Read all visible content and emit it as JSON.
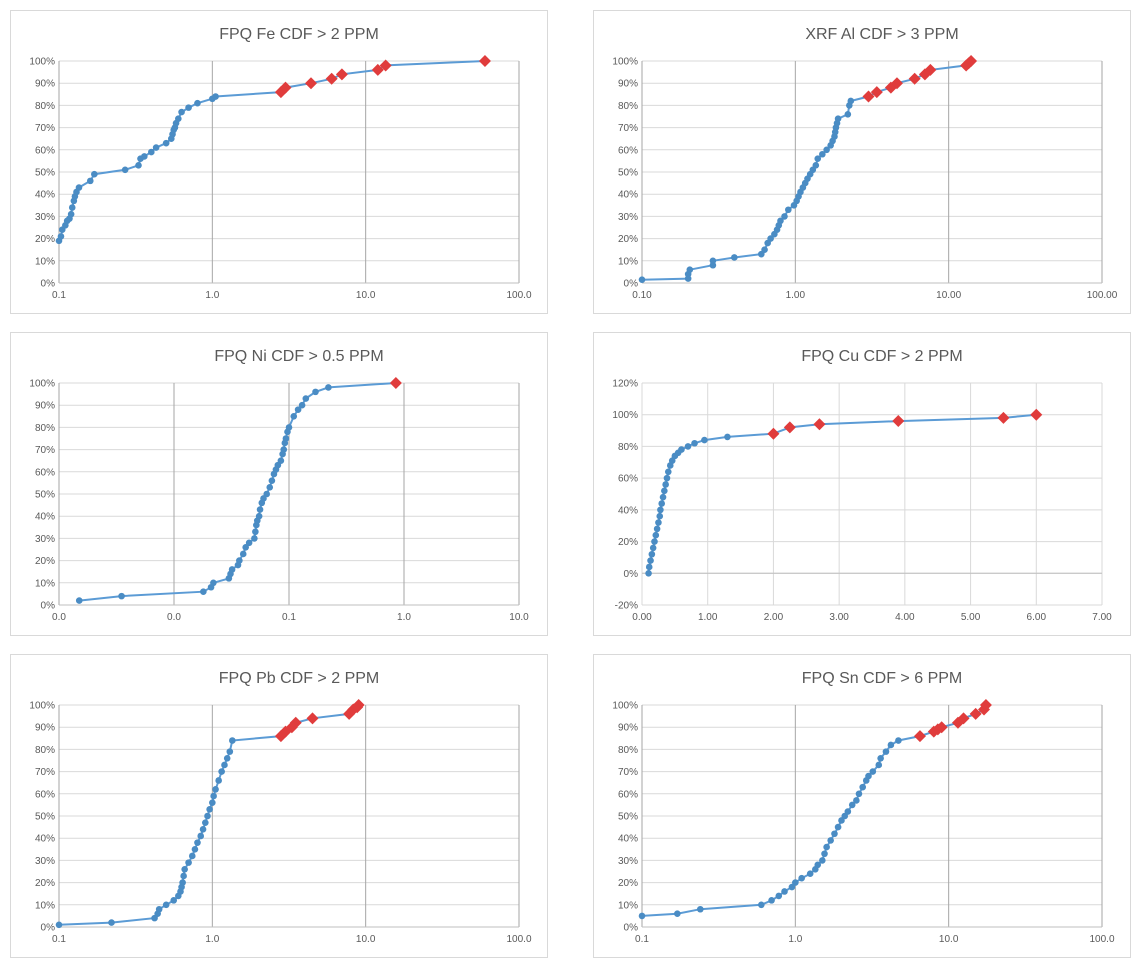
{
  "colors": {
    "line": "#5b9bd5",
    "marker": "#4a8cc4",
    "highlight": "#e03c3c",
    "grid": "#d9d9d9",
    "text": "#595959"
  },
  "chart_data": [
    {
      "type": "scatter",
      "scale": "log",
      "title": "FPQ Fe CDF > 2 PPM",
      "xlim": [
        0.1,
        100
      ],
      "ylim": [
        0,
        100
      ],
      "xticks": [
        0.1,
        1,
        10,
        100
      ],
      "xtick_labels": [
        "0.1",
        "1.0",
        "10.0",
        "100.0"
      ],
      "yticks": [
        0,
        10,
        20,
        30,
        40,
        50,
        60,
        70,
        80,
        90,
        100
      ],
      "ytick_labels": [
        "0%",
        "10%",
        "20%",
        "30%",
        "40%",
        "50%",
        "60%",
        "70%",
        "80%",
        "90%",
        "100%"
      ],
      "series": [
        {
          "x": [
            0.1,
            0.103,
            0.105,
            0.11,
            0.113,
            0.117,
            0.12,
            0.122,
            0.125,
            0.127,
            0.13,
            0.135,
            0.16,
            0.17,
            0.27,
            0.33,
            0.34,
            0.36,
            0.4,
            0.43,
            0.5,
            0.54,
            0.55,
            0.56,
            0.57,
            0.58,
            0.6,
            0.63,
            0.7,
            0.8,
            1.0,
            1.05,
            2.8,
            3.0,
            4.4,
            6.0,
            7.0,
            12.0,
            13.5,
            60.0
          ],
          "y": [
            19,
            21,
            24,
            26,
            28,
            29,
            31,
            34,
            37,
            39,
            41,
            43,
            46,
            49,
            51,
            53,
            56,
            57,
            59,
            61,
            63,
            65,
            67,
            69,
            70,
            72,
            74,
            77,
            79,
            81,
            83,
            84,
            86,
            88,
            90,
            92,
            94,
            96,
            98,
            100
          ]
        },
        {
          "highlight": true,
          "x": [
            2.8,
            3.0,
            4.4,
            6.0,
            7.0,
            12.0,
            13.5,
            60.0
          ],
          "y": [
            86,
            88,
            90,
            92,
            94,
            96,
            98,
            100
          ]
        }
      ]
    },
    {
      "type": "scatter",
      "scale": "log",
      "title": "XRF Al CDF > 3 PPM",
      "xlim": [
        0.1,
        100
      ],
      "ylim": [
        0,
        100
      ],
      "xticks": [
        0.1,
        1,
        10,
        100
      ],
      "xtick_labels": [
        "0.10",
        "1.00",
        "10.00",
        "100.00"
      ],
      "yticks": [
        0,
        10,
        20,
        30,
        40,
        50,
        60,
        70,
        80,
        90,
        100
      ],
      "ytick_labels": [
        "0%",
        "10%",
        "20%",
        "30%",
        "40%",
        "50%",
        "60%",
        "70%",
        "80%",
        "90%",
        "100%"
      ],
      "series": [
        {
          "x": [
            0.1,
            0.2,
            0.2,
            0.205,
            0.29,
            0.29,
            0.4,
            0.6,
            0.63,
            0.66,
            0.69,
            0.73,
            0.76,
            0.78,
            0.8,
            0.85,
            0.9,
            0.98,
            1.02,
            1.05,
            1.08,
            1.12,
            1.16,
            1.2,
            1.25,
            1.3,
            1.36,
            1.4,
            1.5,
            1.6,
            1.7,
            1.75,
            1.8,
            1.82,
            1.84,
            1.87,
            1.9,
            2.2,
            2.25,
            2.3,
            3.0,
            3.4,
            4.2,
            4.6,
            6.0,
            7.0,
            7.6,
            13.0,
            13.5,
            14.0
          ],
          "y": [
            1.5,
            2,
            4,
            6,
            8,
            10,
            11.5,
            13,
            15,
            18,
            20,
            22,
            24,
            26,
            28,
            30,
            33,
            35,
            37,
            39,
            41,
            43,
            45,
            47,
            49,
            51,
            53,
            56,
            58,
            60,
            62,
            64,
            66,
            68,
            70,
            72,
            74,
            76,
            80,
            82,
            84,
            86,
            88,
            90,
            92,
            94,
            96,
            98,
            99,
            100
          ]
        },
        {
          "highlight": true,
          "x": [
            3.0,
            3.4,
            4.2,
            4.6,
            6.0,
            7.0,
            7.6,
            13.0,
            13.5,
            14.0
          ],
          "y": [
            84,
            86,
            88,
            90,
            92,
            94,
            96,
            98,
            99,
            100
          ]
        }
      ]
    },
    {
      "type": "scatter",
      "scale": "log",
      "title": "FPQ Ni CDF > 0.5 PPM",
      "xlim": [
        0.001,
        10
      ],
      "ylim": [
        0,
        100
      ],
      "xticks": [
        0.001,
        0.01,
        0.1,
        1,
        10
      ],
      "xtick_labels": [
        "0.0",
        "0.0",
        "0.1",
        "1.0",
        "10.0"
      ],
      "yticks": [
        0,
        10,
        20,
        30,
        40,
        50,
        60,
        70,
        80,
        90,
        100
      ],
      "ytick_labels": [
        "0%",
        "10%",
        "20%",
        "30%",
        "40%",
        "50%",
        "60%",
        "70%",
        "80%",
        "90%",
        "100%"
      ],
      "series": [
        {
          "x": [
            0.0015,
            0.0035,
            0.018,
            0.021,
            0.022,
            0.03,
            0.031,
            0.032,
            0.036,
            0.037,
            0.04,
            0.042,
            0.045,
            0.05,
            0.051,
            0.052,
            0.053,
            0.055,
            0.056,
            0.058,
            0.06,
            0.064,
            0.068,
            0.071,
            0.074,
            0.077,
            0.08,
            0.085,
            0.088,
            0.09,
            0.092,
            0.094,
            0.097,
            0.1,
            0.11,
            0.12,
            0.13,
            0.14,
            0.17,
            0.22,
            0.85
          ],
          "y": [
            2,
            4,
            6,
            8,
            10,
            12,
            14,
            16,
            18,
            20,
            23,
            26,
            28,
            30,
            33,
            36,
            38,
            40,
            43,
            46,
            48,
            50,
            53,
            56,
            59,
            61,
            63,
            65,
            68,
            70,
            73,
            75,
            78,
            80,
            85,
            88,
            90,
            93,
            96,
            98,
            100
          ]
        },
        {
          "highlight": true,
          "x": [
            0.85
          ],
          "y": [
            100
          ]
        }
      ]
    },
    {
      "type": "scatter",
      "scale": "linear",
      "title": "FPQ Cu CDF > 2 PPM",
      "xlim": [
        0,
        7
      ],
      "ylim": [
        -20,
        120
      ],
      "xticks": [
        0,
        1,
        2,
        3,
        4,
        5,
        6,
        7
      ],
      "xtick_labels": [
        "0.00",
        "1.00",
        "2.00",
        "3.00",
        "4.00",
        "5.00",
        "6.00",
        "7.00"
      ],
      "yticks": [
        -20,
        0,
        20,
        40,
        60,
        80,
        100,
        120
      ],
      "ytick_labels": [
        "-20%",
        "0%",
        "20%",
        "40%",
        "60%",
        "80%",
        "100%",
        "120%"
      ],
      "series": [
        {
          "x": [
            0.1,
            0.11,
            0.13,
            0.15,
            0.17,
            0.19,
            0.21,
            0.23,
            0.25,
            0.27,
            0.28,
            0.3,
            0.32,
            0.34,
            0.36,
            0.38,
            0.4,
            0.43,
            0.46,
            0.5,
            0.55,
            0.6,
            0.7,
            0.8,
            0.95,
            1.3,
            2.0,
            2.25,
            2.7,
            3.9,
            5.5,
            6.0
          ],
          "y": [
            0,
            4,
            8,
            12,
            16,
            20,
            24,
            28,
            32,
            36,
            40,
            44,
            48,
            52,
            56,
            60,
            64,
            68,
            71,
            74,
            76,
            78,
            80,
            82,
            84,
            86,
            88,
            92,
            94,
            96,
            98,
            100
          ]
        },
        {
          "highlight": true,
          "x": [
            2.0,
            2.25,
            2.7,
            3.9,
            5.5,
            6.0
          ],
          "y": [
            88,
            92,
            94,
            96,
            98,
            100
          ]
        }
      ]
    },
    {
      "type": "scatter",
      "scale": "log",
      "title": "FPQ Pb CDF > 2 PPM",
      "xlim": [
        0.1,
        100
      ],
      "ylim": [
        0,
        100
      ],
      "xticks": [
        0.1,
        1,
        10,
        100
      ],
      "xtick_labels": [
        "0.1",
        "1.0",
        "10.0",
        "100.0"
      ],
      "yticks": [
        0,
        10,
        20,
        30,
        40,
        50,
        60,
        70,
        80,
        90,
        100
      ],
      "ytick_labels": [
        "0%",
        "10%",
        "20%",
        "30%",
        "40%",
        "50%",
        "60%",
        "70%",
        "80%",
        "90%",
        "100%"
      ],
      "series": [
        {
          "x": [
            0.1,
            0.22,
            0.42,
            0.44,
            0.45,
            0.5,
            0.56,
            0.6,
            0.62,
            0.63,
            0.64,
            0.65,
            0.66,
            0.7,
            0.74,
            0.77,
            0.8,
            0.84,
            0.87,
            0.9,
            0.93,
            0.96,
            1.0,
            1.02,
            1.05,
            1.1,
            1.15,
            1.2,
            1.25,
            1.3,
            1.35,
            2.8,
            3.0,
            3.3,
            3.5,
            4.5,
            7.8,
            8.3,
            8.8,
            9.0
          ],
          "y": [
            1,
            2,
            4,
            6,
            8,
            10,
            12,
            14,
            16,
            18,
            20,
            23,
            26,
            29,
            32,
            35,
            38,
            41,
            44,
            47,
            50,
            53,
            56,
            59,
            62,
            66,
            70,
            73,
            76,
            79,
            84,
            86,
            88,
            90,
            92,
            94,
            96,
            98,
            99,
            100
          ]
        },
        {
          "highlight": true,
          "x": [
            2.8,
            3.0,
            3.3,
            3.5,
            4.5,
            7.8,
            8.3,
            8.8,
            9.0
          ],
          "y": [
            86,
            88,
            90,
            92,
            94,
            96,
            98,
            99,
            100
          ]
        }
      ]
    },
    {
      "type": "scatter",
      "scale": "log",
      "title": "FPQ Sn CDF > 6 PPM",
      "xlim": [
        0.1,
        100
      ],
      "ylim": [
        0,
        100
      ],
      "xticks": [
        0.1,
        1,
        10,
        100
      ],
      "xtick_labels": [
        "0.1",
        "1.0",
        "10.0",
        "100.0"
      ],
      "yticks": [
        0,
        10,
        20,
        30,
        40,
        50,
        60,
        70,
        80,
        90,
        100
      ],
      "ytick_labels": [
        "0%",
        "10%",
        "20%",
        "30%",
        "40%",
        "50%",
        "60%",
        "70%",
        "80%",
        "90%",
        "100%"
      ],
      "series": [
        {
          "x": [
            0.1,
            0.17,
            0.24,
            0.6,
            0.7,
            0.78,
            0.85,
            0.95,
            1.0,
            1.1,
            1.25,
            1.35,
            1.4,
            1.5,
            1.55,
            1.6,
            1.7,
            1.8,
            1.9,
            2.0,
            2.1,
            2.2,
            2.35,
            2.5,
            2.6,
            2.75,
            2.9,
            3.0,
            3.2,
            3.5,
            3.6,
            3.9,
            4.2,
            4.7,
            6.5,
            8.0,
            8.5,
            9.0,
            11.5,
            12.5,
            15.0,
            17.0,
            17.5
          ],
          "y": [
            5,
            6,
            8,
            10,
            12,
            14,
            16,
            18,
            20,
            22,
            24,
            26,
            28,
            30,
            33,
            36,
            39,
            42,
            45,
            48,
            50,
            52,
            55,
            57,
            60,
            63,
            66,
            68,
            70,
            73,
            76,
            79,
            82,
            84,
            86,
            88,
            89,
            90,
            92,
            94,
            96,
            98,
            100
          ]
        },
        {
          "highlight": true,
          "x": [
            6.5,
            8.0,
            8.5,
            9.0,
            11.5,
            12.5,
            15.0,
            17.0,
            17.5
          ],
          "y": [
            86,
            88,
            89,
            90,
            92,
            94,
            96,
            98,
            100
          ]
        }
      ]
    }
  ]
}
